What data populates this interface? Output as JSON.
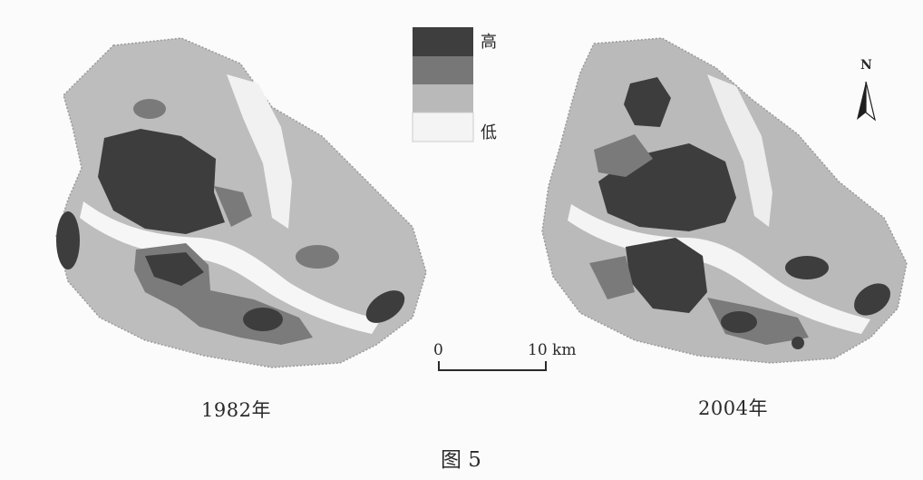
{
  "legend": {
    "high_label": "高",
    "low_label": "低",
    "colors": [
      "#3e3e3e",
      "#777777",
      "#b9b9b9",
      "#f4f4f4"
    ]
  },
  "maps": [
    {
      "label": "1982年"
    },
    {
      "label": "2004年"
    }
  ],
  "scale_bar": {
    "start_label": "0",
    "end_label": "10 km"
  },
  "north_arrow": {
    "label": "N",
    "icon": "north-arrow-icon"
  },
  "caption": "图 5"
}
